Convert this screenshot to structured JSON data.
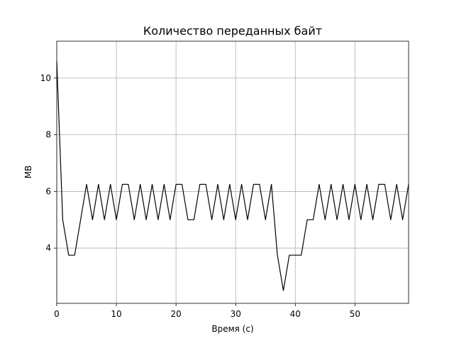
{
  "chart_data": {
    "type": "line",
    "title": "Количество переданных байт",
    "xlabel": "Время (с)",
    "ylabel": "MB",
    "xlim": [
      0,
      59
    ],
    "ylim": [
      2.05,
      11.3
    ],
    "xticks": [
      0,
      10,
      20,
      30,
      40,
      50
    ],
    "yticks": [
      4,
      6,
      8,
      10
    ],
    "grid": true,
    "line_color": "#000000",
    "series": [
      {
        "x": [
          0,
          1,
          2,
          3,
          4,
          5,
          6,
          7,
          8,
          9,
          10,
          11,
          12,
          13,
          14,
          15,
          16,
          17,
          18,
          19,
          20,
          21,
          22,
          23,
          24,
          25,
          26,
          27,
          28,
          29,
          30,
          31,
          32,
          33,
          34,
          35,
          36,
          37,
          38,
          39,
          40,
          41,
          42,
          43,
          44,
          45,
          46,
          47,
          48,
          49,
          50,
          51,
          52,
          53,
          54,
          55,
          56,
          57,
          58,
          59
        ],
        "values": [
          10.6,
          5.0,
          3.75,
          3.75,
          5.0,
          6.25,
          5.0,
          6.25,
          5.0,
          6.25,
          5.0,
          6.25,
          6.25,
          5.0,
          6.25,
          5.0,
          6.25,
          5.0,
          6.25,
          5.0,
          6.25,
          6.25,
          5.0,
          5.0,
          6.25,
          6.25,
          5.0,
          6.25,
          5.0,
          6.25,
          5.0,
          6.25,
          5.0,
          6.25,
          6.25,
          5.0,
          6.25,
          3.75,
          2.5,
          3.75,
          3.75,
          3.75,
          5.0,
          5.0,
          6.25,
          5.0,
          6.25,
          5.0,
          6.25,
          5.0,
          6.25,
          5.0,
          6.25,
          5.0,
          6.25,
          6.25,
          5.0,
          6.25,
          5.0,
          6.25
        ]
      }
    ]
  }
}
